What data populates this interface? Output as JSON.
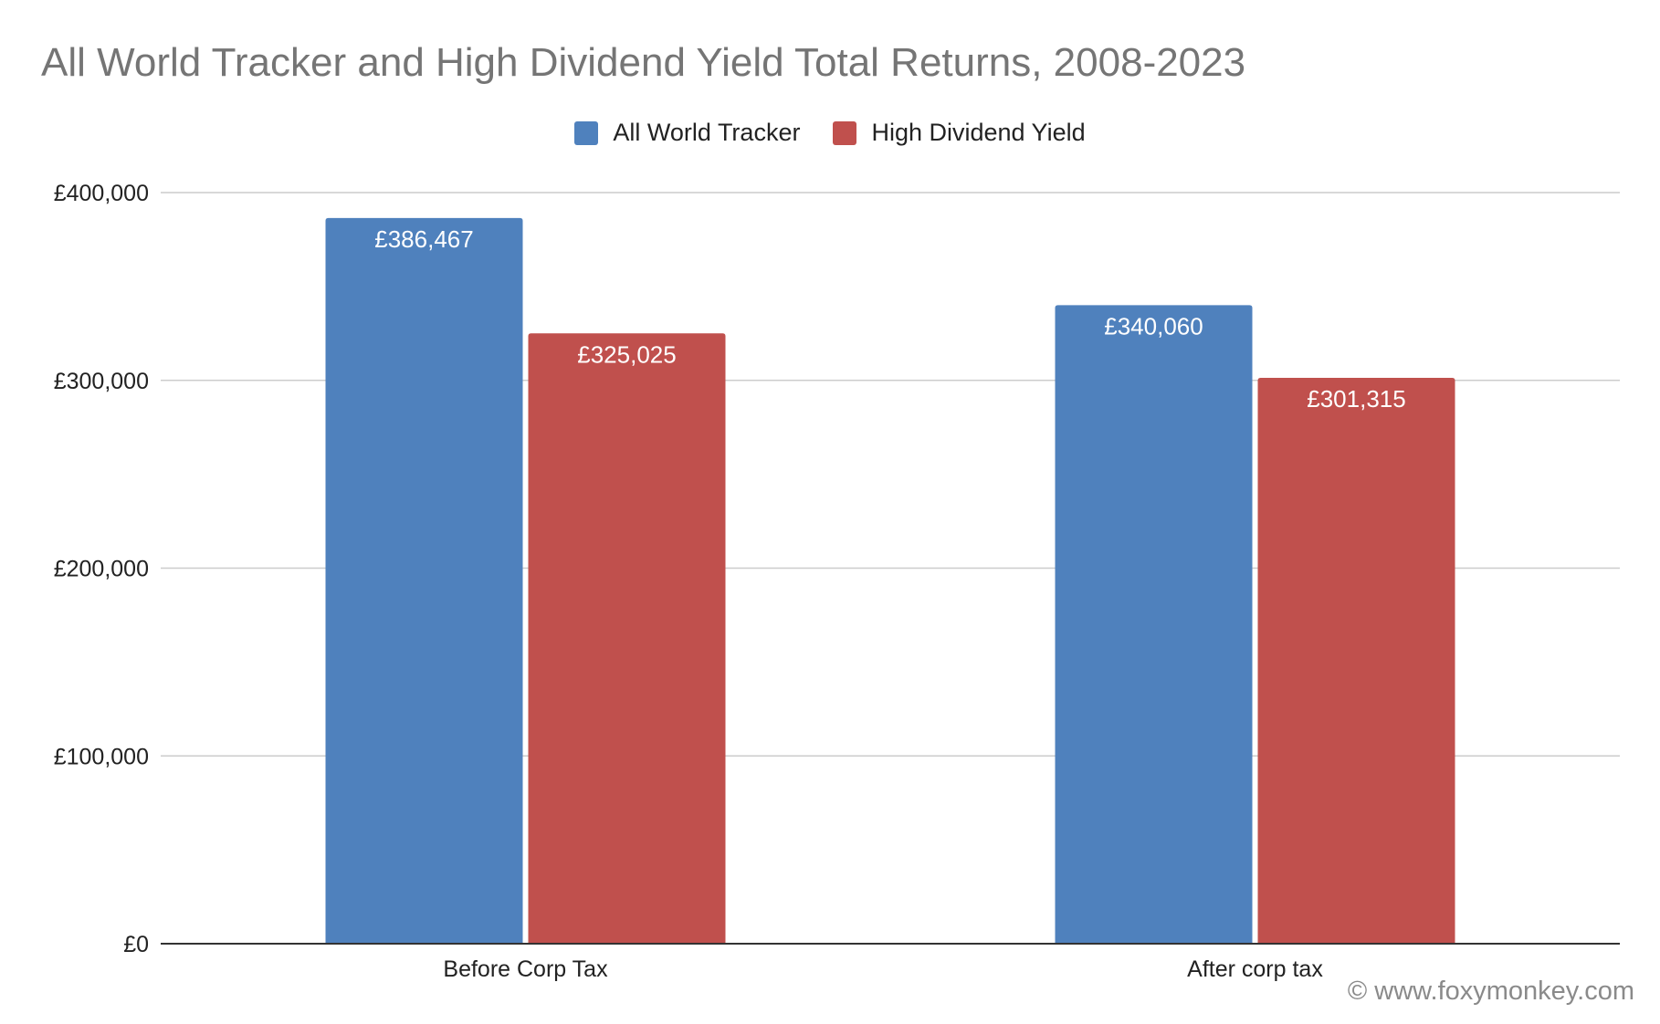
{
  "chart_data": {
    "type": "bar",
    "title": "All World Tracker and High Dividend Yield Total Returns, 2008-2023",
    "categories": [
      "Before Corp Tax",
      "After corp tax"
    ],
    "series": [
      {
        "name": "All World Tracker",
        "color": "#4f81bd",
        "values": [
          386467,
          340060
        ],
        "labels": [
          "£386,467",
          "£340,060"
        ]
      },
      {
        "name": "High Dividend Yield",
        "color": "#c0504d",
        "values": [
          325025,
          301315
        ],
        "labels": [
          "£325,025",
          "£301,315"
        ]
      }
    ],
    "ylim": [
      0,
      400000
    ],
    "yticks": [
      0,
      100000,
      200000,
      300000,
      400000
    ],
    "ytick_labels": [
      "£0",
      "£100,000",
      "£200,000",
      "£300,000",
      "£400,000"
    ],
    "xlabel": "",
    "ylabel": "",
    "grid": true,
    "legend_position": "top-center"
  },
  "watermark": "© www.foxymonkey.com"
}
